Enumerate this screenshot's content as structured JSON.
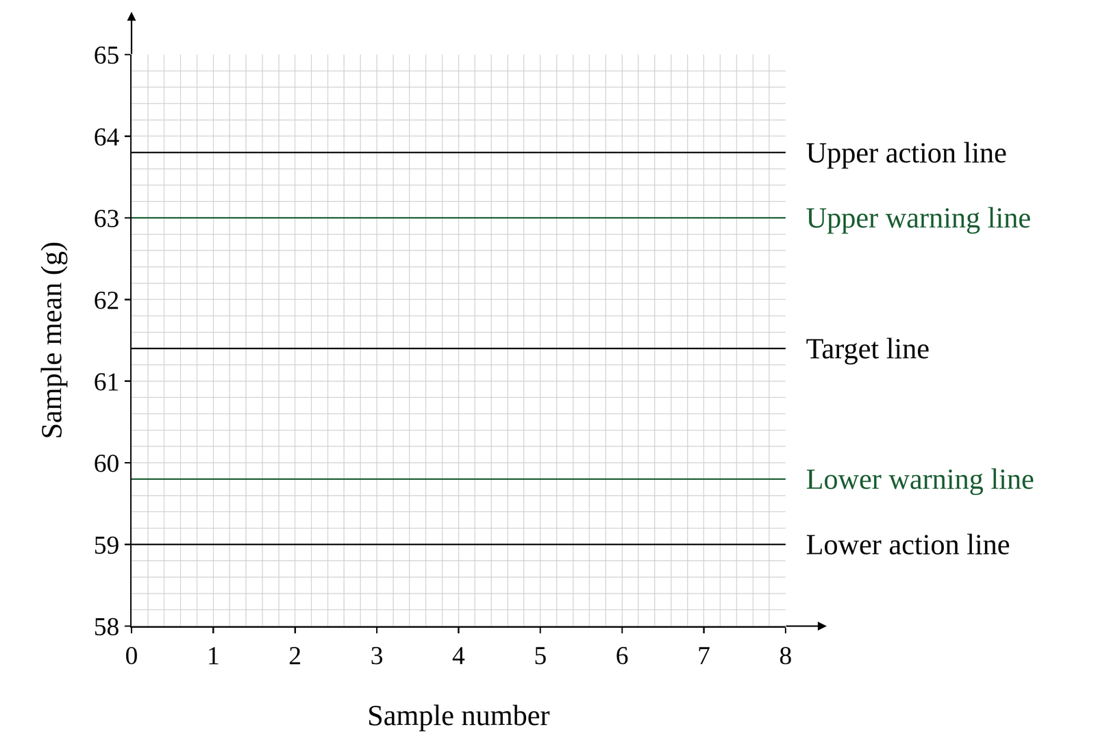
{
  "chart_data": {
    "type": "line",
    "x_label": "Sample number",
    "y_label": "Sample mean (g)",
    "xlim": [
      0,
      8
    ],
    "xticks": [
      0,
      1,
      2,
      3,
      4,
      5,
      6,
      7,
      8
    ],
    "ylim": [
      58,
      65
    ],
    "yticks": [
      58,
      59,
      60,
      61,
      62,
      63,
      64,
      65
    ],
    "grid": true,
    "series": [
      {
        "name": "Upper action line",
        "color": "#000000",
        "x": [
          0,
          8
        ],
        "values": [
          63.8,
          63.8
        ]
      },
      {
        "name": "Upper warning line",
        "color": "#1b5e33",
        "x": [
          0,
          8
        ],
        "values": [
          63,
          63
        ]
      },
      {
        "name": "Target line",
        "color": "#000000",
        "x": [
          0,
          8
        ],
        "values": [
          61.4,
          61.4
        ]
      },
      {
        "name": "Lower warning line",
        "color": "#1b5e33",
        "x": [
          0,
          8
        ],
        "values": [
          59.8,
          59.8
        ]
      },
      {
        "name": "Lower action line",
        "color": "#000000",
        "x": [
          0,
          8
        ],
        "values": [
          59,
          59
        ]
      }
    ]
  }
}
